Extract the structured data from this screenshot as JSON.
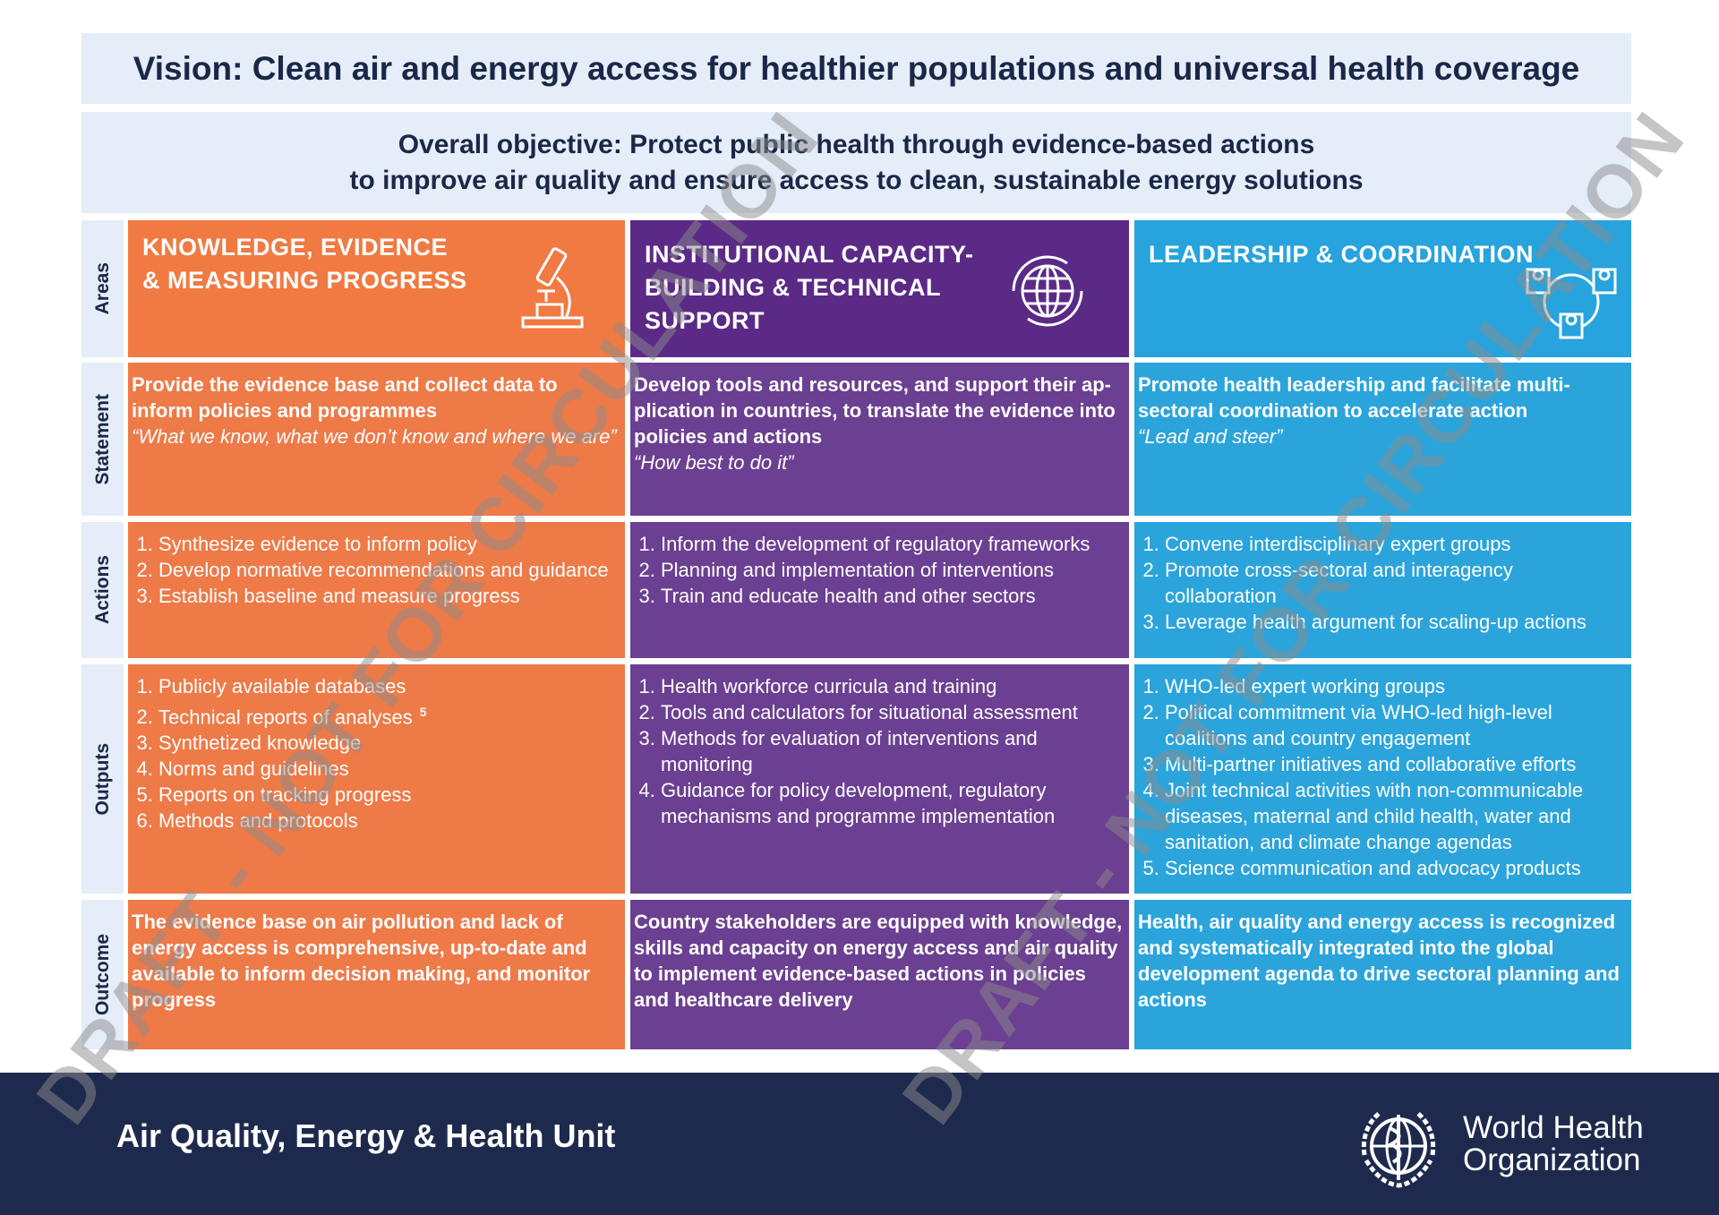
{
  "header": {
    "vision": "Vision: Clean air and energy access for healthier populations and universal health coverage",
    "objective_lines": [
      "Overall objective: Protect public health through evidence-based actions",
      "to improve air quality and ensure access to clean, sustainable energy solutions"
    ]
  },
  "row_labels": [
    "Areas",
    "Statement",
    "Actions",
    "Outputs",
    "Outcome"
  ],
  "columns": [
    {
      "area_lines": [
        "KNOWLEDGE, EVIDENCE",
        "& MEASURING PROGRESS"
      ],
      "statement": "Provide the evidence base and collect data to inform policies and programmes",
      "quote": "“What we know, what we don’t know and where we are”",
      "actions": [
        "Synthesize evidence to inform policy",
        "Develop normative recommendations and guidance",
        "Establish baseline and measure progress"
      ],
      "outputs": [
        "Publicly available databases",
        "Technical reports of analyses",
        "Synthetized knowledge",
        "Norms and guidelines",
        "Reports on tracking progress",
        "Methods and protocols"
      ],
      "outputs_footnote": "5",
      "outcome": "The evidence base on air pollution and lack of energy access is comprehensive, up-to-date and available to inform decision making, and monitor progress"
    },
    {
      "area_lines": [
        "INSTITUTIONAL CAPACITY-",
        "BUILDING & TECHNICAL",
        "SUPPORT"
      ],
      "statement": "Develop tools and resources, and support their ap­plication in countries, to translate the evidence into policies and actions",
      "quote": "“How best to do it”",
      "actions": [
        "Inform the development of regulatory frameworks",
        "Planning and implementation of interventions",
        "Train and educate health and other sectors"
      ],
      "outputs": [
        "Health workforce curricula and training",
        "Tools and calculators for situational assessment",
        "Methods for evaluation of interventions and monitoring",
        "Guidance for policy development, regulatory mechanisms and programme implementation"
      ],
      "outcome": "Country stakeholders are equipped with knowledge, skills and capacity on energy access and air quality to implement evidence-based actions in policies and healthcare delivery"
    },
    {
      "area_lines": [
        "LEADERSHIP & COORDINATION"
      ],
      "statement": "Promote health leadership and facilitate multi-sectoral coordination to accelerate action",
      "quote": "“Lead and steer”",
      "actions": [
        "Convene interdisciplinary expert groups",
        "Promote cross-sectoral and interagency collaboration",
        "Leverage health argument for scaling-up actions"
      ],
      "outputs": [
        "WHO-led expert working groups",
        "Political commitment via WHO-led high-level coalitions and country engagement",
        "Multi-partner initiatives and collaborative efforts",
        "Joint technical activities with non-communicable diseases, maternal and child health, water and sanitation, and climate change agendas",
        "Science communication and advocacy products"
      ],
      "outcome": "Health, air quality and energy access is recognized and systematically integrated into the global development agenda to drive sectoral planning and actions"
    }
  ],
  "footer": {
    "unit": "Air Quality, Energy & Health Unit",
    "org_lines": [
      "World Health",
      "Organization"
    ]
  },
  "watermark": "DRAFT - NOT FOR CIRCULATION"
}
